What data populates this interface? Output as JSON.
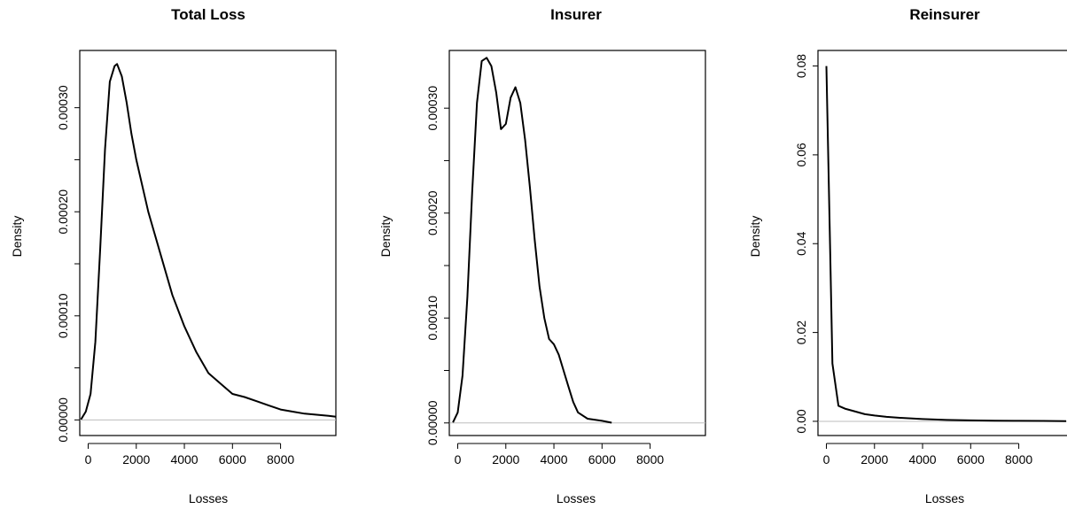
{
  "chart_data": [
    {
      "type": "line",
      "title": "Total Loss",
      "xlabel": "Losses",
      "ylabel": "Density",
      "xlim": [
        -350,
        10300
      ],
      "ylim": [
        -1.5e-05,
        0.000355
      ],
      "xticks": [
        0,
        2000,
        4000,
        6000,
        8000
      ],
      "xtick_labels": [
        "0",
        "2000",
        "4000",
        "6000",
        "8000"
      ],
      "yticks": [
        0,
        0.0001,
        0.0002,
        0.0003
      ],
      "ytick_labels": [
        "0.00000",
        "0.00010",
        "0.00020",
        "0.00030"
      ],
      "yminor_ticks": [
        5e-05,
        0.00015,
        0.00025
      ],
      "baseline": 0,
      "series": [
        {
          "x": [
            -300,
            -100,
            100,
            300,
            500,
            700,
            900,
            1100,
            1200,
            1400,
            1600,
            1800,
            2000,
            2500,
            3000,
            3500,
            4000,
            4500,
            5000,
            5500,
            6000,
            6500,
            7000,
            7500,
            8000,
            8500,
            9000,
            9500,
            10000,
            10300
          ],
          "y": [
            5e-07,
            8e-06,
            2.5e-05,
            7.5e-05,
            0.000165,
            0.00026,
            0.000325,
            0.00034,
            0.000342,
            0.00033,
            0.000305,
            0.000275,
            0.00025,
            0.0002,
            0.00016,
            0.00012,
            9e-05,
            6.5e-05,
            4.5e-05,
            3.5e-05,
            2.5e-05,
            2.2e-05,
            1.8e-05,
            1.4e-05,
            1e-05,
            8e-06,
            6e-06,
            5e-06,
            4e-06,
            3e-06
          ]
        }
      ]
    },
    {
      "type": "line",
      "title": "Insurer",
      "xlabel": "Losses",
      "ylabel": "Density",
      "xlim": [
        -350,
        10300
      ],
      "ylim": [
        -1.2e-05,
        0.000355
      ],
      "xticks": [
        0,
        2000,
        4000,
        6000,
        8000
      ],
      "xtick_labels": [
        "0",
        "2000",
        "4000",
        "6000",
        "8000"
      ],
      "yticks": [
        0,
        0.0001,
        0.0002,
        0.0003
      ],
      "ytick_labels": [
        "0.00000",
        "0.00010",
        "0.00020",
        "0.00030"
      ],
      "yminor_ticks": [
        5e-05,
        0.00015,
        0.00025
      ],
      "baseline": 0,
      "series": [
        {
          "x": [
            -200,
            0,
            200,
            400,
            600,
            800,
            1000,
            1200,
            1400,
            1600,
            1800,
            2000,
            2200,
            2400,
            2600,
            2800,
            3000,
            3200,
            3400,
            3600,
            3800,
            4000,
            4200,
            4400,
            4600,
            4800,
            5000,
            5400,
            6000,
            6400
          ],
          "y": [
            5e-07,
            1e-05,
            4.5e-05,
            0.00012,
            0.00022,
            0.000305,
            0.000345,
            0.000348,
            0.00034,
            0.000315,
            0.00028,
            0.000285,
            0.00031,
            0.00032,
            0.000305,
            0.00027,
            0.000225,
            0.000175,
            0.00013,
            0.0001,
            8e-05,
            7.5e-05,
            6.5e-05,
            5e-05,
            3.5e-05,
            2e-05,
            1e-05,
            4e-06,
            2e-06,
            2e-07
          ]
        }
      ]
    },
    {
      "type": "line",
      "title": "Reinsurer",
      "xlabel": "Losses",
      "ylabel": "Density",
      "xlim": [
        -350,
        10300
      ],
      "ylim": [
        -0.0032,
        0.0835
      ],
      "xticks": [
        0,
        2000,
        4000,
        6000,
        8000
      ],
      "xtick_labels": [
        "0",
        "2000",
        "4000",
        "6000",
        "8000"
      ],
      "yticks": [
        0,
        0.02,
        0.04,
        0.06,
        0.08
      ],
      "ytick_labels": [
        "0.00",
        "0.02",
        "0.04",
        "0.06",
        "0.08"
      ],
      "yminor_ticks": [],
      "baseline": 0,
      "series": [
        {
          "x": [
            0,
            150,
            250,
            500,
            800,
            1200,
            1600,
            2000,
            2500,
            3000,
            4000,
            5000,
            6000,
            7000,
            8000,
            9000,
            10000,
            10300
          ],
          "y": [
            0.08,
            0.04,
            0.013,
            0.0035,
            0.0028,
            0.0022,
            0.0016,
            0.0013,
            0.001,
            0.0008,
            0.0005,
            0.0003,
            0.0002,
            0.00015,
            0.0001,
            8e-05,
            5e-05,
            5e-05
          ]
        }
      ]
    }
  ]
}
